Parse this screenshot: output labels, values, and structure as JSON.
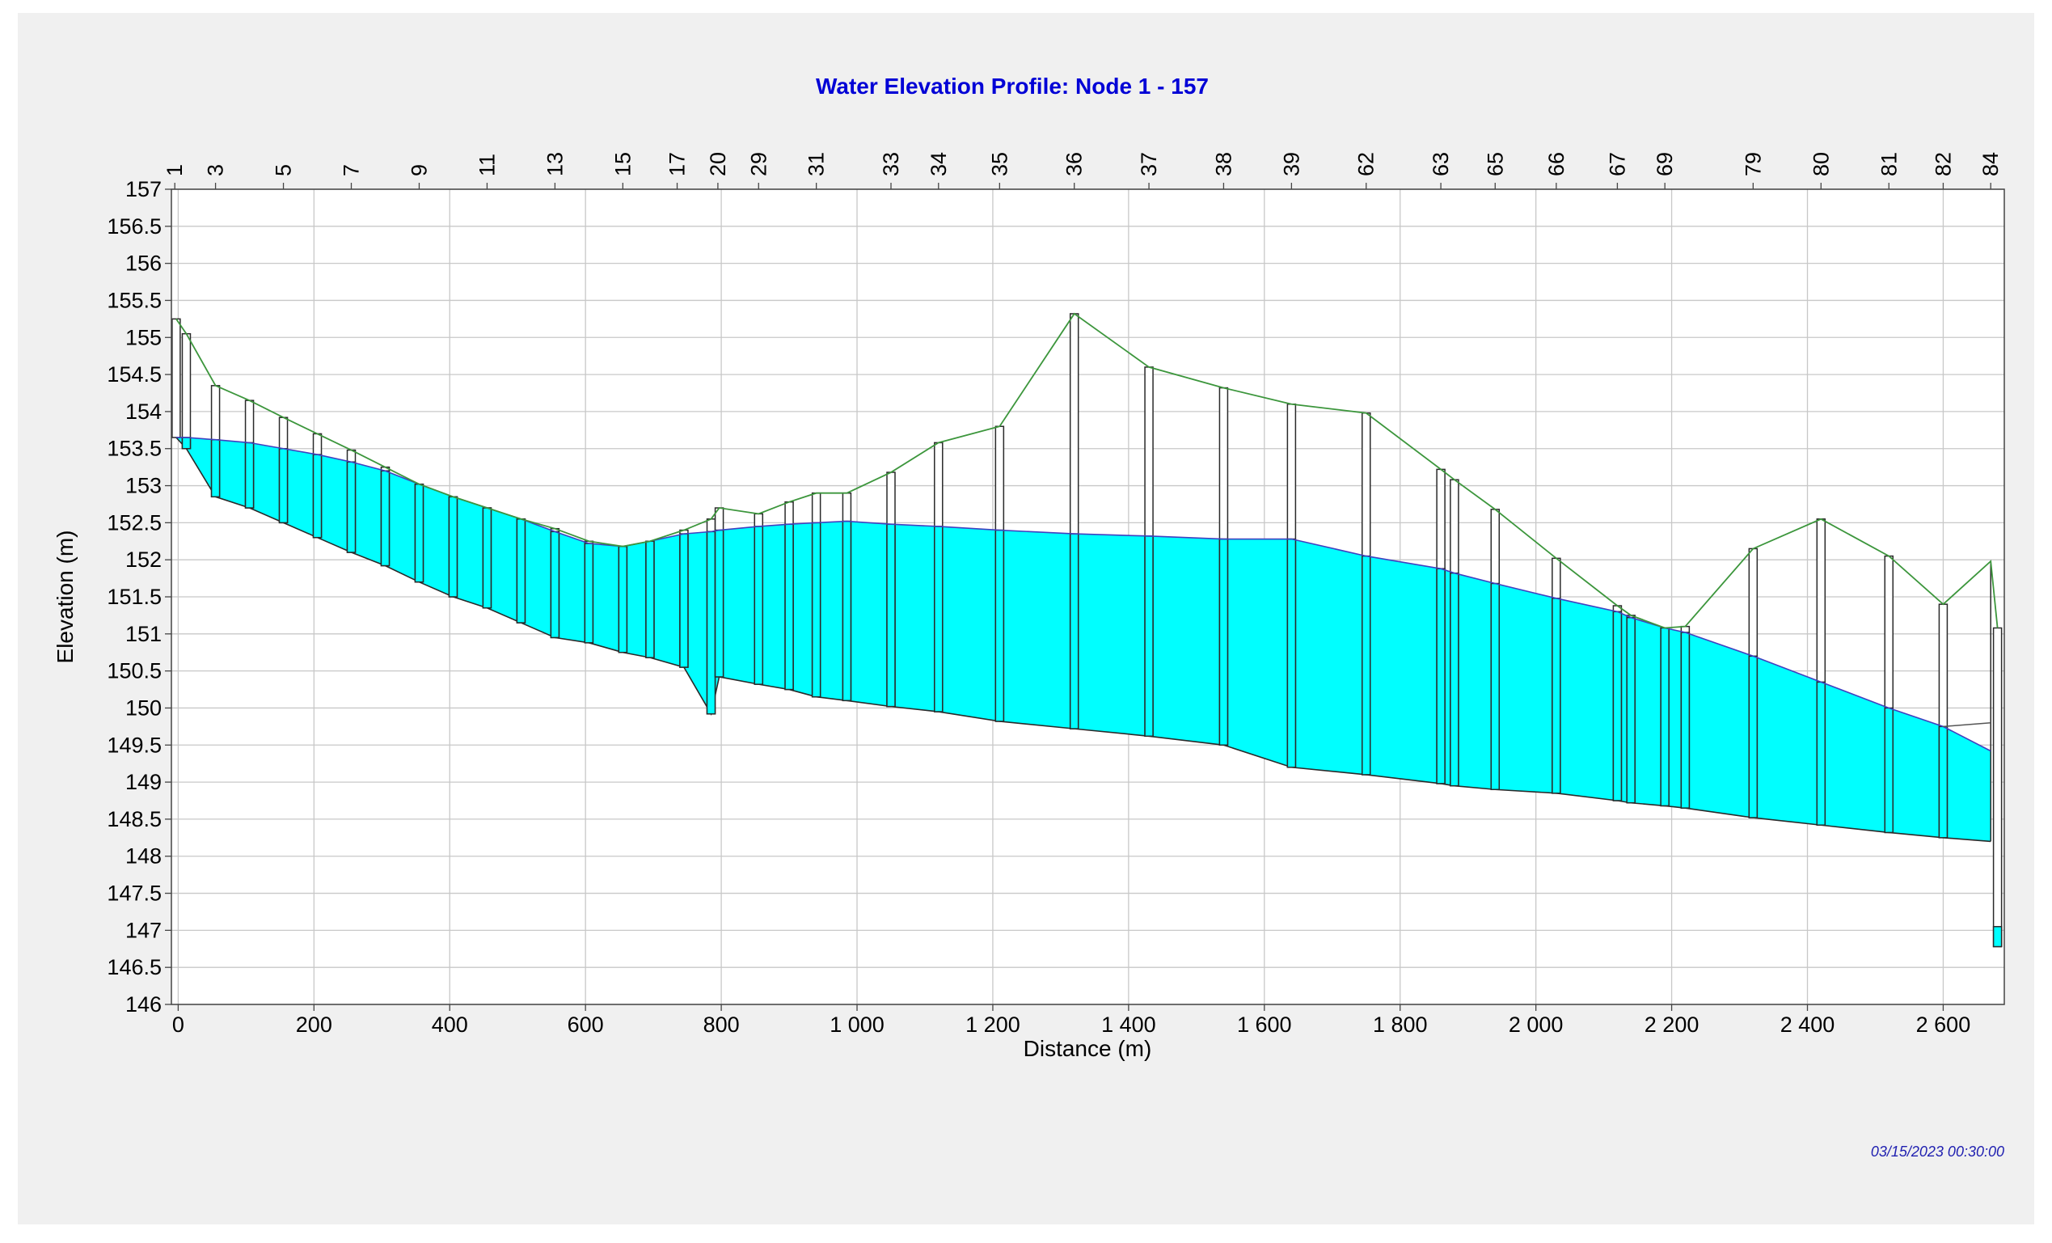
{
  "chart_data": {
    "type": "area",
    "title": "Water Elevation Profile: Node 1 - 157",
    "xlabel": "Distance (m)",
    "ylabel": "Elevation (m)",
    "timestamp": "03/15/2023 00:30:00",
    "xlim": [
      -10,
      2690
    ],
    "ylim": [
      146,
      157
    ],
    "grid": true,
    "x_ticks": [
      {
        "value": 0,
        "label": "0"
      },
      {
        "value": 200,
        "label": "200"
      },
      {
        "value": 400,
        "label": "400"
      },
      {
        "value": 600,
        "label": "600"
      },
      {
        "value": 800,
        "label": "800"
      },
      {
        "value": 1000,
        "label": "1 000"
      },
      {
        "value": 1200,
        "label": "1 200"
      },
      {
        "value": 1400,
        "label": "1 400"
      },
      {
        "value": 1600,
        "label": "1 600"
      },
      {
        "value": 1800,
        "label": "1 800"
      },
      {
        "value": 2000,
        "label": "2 000"
      },
      {
        "value": 2200,
        "label": "2 200"
      },
      {
        "value": 2400,
        "label": "2 400"
      },
      {
        "value": 2600,
        "label": "2 600"
      }
    ],
    "y_ticks": [
      {
        "value": 146,
        "label": "146"
      },
      {
        "value": 146.5,
        "label": "146.5"
      },
      {
        "value": 147,
        "label": "147"
      },
      {
        "value": 147.5,
        "label": "147.5"
      },
      {
        "value": 148,
        "label": "148"
      },
      {
        "value": 148.5,
        "label": "148.5"
      },
      {
        "value": 149,
        "label": "149"
      },
      {
        "value": 149.5,
        "label": "149.5"
      },
      {
        "value": 150,
        "label": "150"
      },
      {
        "value": 150.5,
        "label": "150.5"
      },
      {
        "value": 151,
        "label": "151"
      },
      {
        "value": 151.5,
        "label": "151.5"
      },
      {
        "value": 152,
        "label": "152"
      },
      {
        "value": 152.5,
        "label": "152.5"
      },
      {
        "value": 153,
        "label": "153"
      },
      {
        "value": 153.5,
        "label": "153.5"
      },
      {
        "value": 154,
        "label": "154"
      },
      {
        "value": 154.5,
        "label": "154.5"
      },
      {
        "value": 155,
        "label": "155"
      },
      {
        "value": 155.5,
        "label": "155.5"
      },
      {
        "value": 156,
        "label": "156"
      },
      {
        "value": 156.5,
        "label": "156.5"
      },
      {
        "value": 157,
        "label": "157"
      }
    ],
    "node_labels": [
      {
        "x": -5,
        "label": "1"
      },
      {
        "x": 55,
        "label": "3"
      },
      {
        "x": 155,
        "label": "5"
      },
      {
        "x": 255,
        "label": "7"
      },
      {
        "x": 355,
        "label": "9"
      },
      {
        "x": 455,
        "label": "11"
      },
      {
        "x": 555,
        "label": "13"
      },
      {
        "x": 655,
        "label": "15"
      },
      {
        "x": 735,
        "label": "17"
      },
      {
        "x": 795,
        "label": "20"
      },
      {
        "x": 855,
        "label": "29"
      },
      {
        "x": 940,
        "label": "31"
      },
      {
        "x": 1050,
        "label": "33"
      },
      {
        "x": 1120,
        "label": "34"
      },
      {
        "x": 1210,
        "label": "35"
      },
      {
        "x": 1320,
        "label": "36"
      },
      {
        "x": 1430,
        "label": "37"
      },
      {
        "x": 1540,
        "label": "38"
      },
      {
        "x": 1640,
        "label": "39"
      },
      {
        "x": 1750,
        "label": "62"
      },
      {
        "x": 1860,
        "label": "63"
      },
      {
        "x": 1940,
        "label": "65"
      },
      {
        "x": 2030,
        "label": "66"
      },
      {
        "x": 2120,
        "label": "67"
      },
      {
        "x": 2190,
        "label": "69"
      },
      {
        "x": 2320,
        "label": "79"
      },
      {
        "x": 2420,
        "label": "80"
      },
      {
        "x": 2520,
        "label": "81"
      },
      {
        "x": 2600,
        "label": "82"
      },
      {
        "x": 2670,
        "label": "84"
      }
    ],
    "nodes": [
      {
        "x": -3,
        "invert": 153.65,
        "ground": 155.25,
        "water": 153.65
      },
      {
        "x": 12,
        "invert": 153.5,
        "ground": 155.05,
        "water": 153.65
      },
      {
        "x": 55,
        "invert": 152.85,
        "ground": 154.35,
        "water": 153.62
      },
      {
        "x": 105,
        "invert": 152.7,
        "ground": 154.15,
        "water": 153.58
      },
      {
        "x": 155,
        "invert": 152.5,
        "ground": 153.92,
        "water": 153.5
      },
      {
        "x": 205,
        "invert": 152.3,
        "ground": 153.7,
        "water": 153.42
      },
      {
        "x": 255,
        "invert": 152.1,
        "ground": 153.48,
        "water": 153.32
      },
      {
        "x": 305,
        "invert": 151.92,
        "ground": 153.25,
        "water": 153.2
      },
      {
        "x": 355,
        "invert": 151.7,
        "ground": 153.02,
        "water": 153.02
      },
      {
        "x": 405,
        "invert": 151.5,
        "ground": 152.85,
        "water": 152.85
      },
      {
        "x": 455,
        "invert": 151.35,
        "ground": 152.7,
        "water": 152.7
      },
      {
        "x": 505,
        "invert": 151.15,
        "ground": 152.55,
        "water": 152.55
      },
      {
        "x": 555,
        "invert": 150.95,
        "ground": 152.42,
        "water": 152.38
      },
      {
        "x": 605,
        "invert": 150.88,
        "ground": 152.25,
        "water": 152.22
      },
      {
        "x": 655,
        "invert": 150.75,
        "ground": 152.18,
        "water": 152.18
      },
      {
        "x": 695,
        "invert": 150.68,
        "ground": 152.25,
        "water": 152.25
      },
      {
        "x": 745,
        "invert": 150.55,
        "ground": 152.4,
        "water": 152.35
      },
      {
        "x": 785,
        "invert": 149.92,
        "ground": 152.55,
        "water": 152.38
      },
      {
        "x": 797,
        "invert": 150.42,
        "ground": 152.7,
        "water": 152.4
      },
      {
        "x": 855,
        "invert": 150.32,
        "ground": 152.62,
        "water": 152.45
      },
      {
        "x": 900,
        "invert": 150.25,
        "ground": 152.78,
        "water": 152.48
      },
      {
        "x": 940,
        "invert": 150.15,
        "ground": 152.9,
        "water": 152.5
      },
      {
        "x": 985,
        "invert": 150.1,
        "ground": 152.9,
        "water": 152.52
      },
      {
        "x": 1050,
        "invert": 150.02,
        "ground": 153.18,
        "water": 152.48
      },
      {
        "x": 1120,
        "invert": 149.95,
        "ground": 153.58,
        "water": 152.45
      },
      {
        "x": 1210,
        "invert": 149.82,
        "ground": 153.8,
        "water": 152.4
      },
      {
        "x": 1320,
        "invert": 149.72,
        "ground": 155.32,
        "water": 152.35
      },
      {
        "x": 1430,
        "invert": 149.62,
        "ground": 154.6,
        "water": 152.32
      },
      {
        "x": 1540,
        "invert": 149.5,
        "ground": 154.32,
        "water": 152.28
      },
      {
        "x": 1640,
        "invert": 149.2,
        "ground": 154.1,
        "water": 152.28
      },
      {
        "x": 1750,
        "invert": 149.1,
        "ground": 153.98,
        "water": 152.05
      },
      {
        "x": 1860,
        "invert": 148.98,
        "ground": 153.22,
        "water": 151.88
      },
      {
        "x": 1880,
        "invert": 148.95,
        "ground": 153.08,
        "water": 151.82
      },
      {
        "x": 1940,
        "invert": 148.9,
        "ground": 152.68,
        "water": 151.68
      },
      {
        "x": 2030,
        "invert": 148.85,
        "ground": 152.02,
        "water": 151.48
      },
      {
        "x": 2120,
        "invert": 148.75,
        "ground": 151.38,
        "water": 151.3
      },
      {
        "x": 2140,
        "invert": 148.72,
        "ground": 151.25,
        "water": 151.22
      },
      {
        "x": 2190,
        "invert": 148.68,
        "ground": 151.08,
        "water": 151.08
      },
      {
        "x": 2220,
        "invert": 148.65,
        "ground": 151.1,
        "water": 151.02
      },
      {
        "x": 2320,
        "invert": 148.52,
        "ground": 152.15,
        "water": 150.7
      },
      {
        "x": 2420,
        "invert": 148.42,
        "ground": 152.55,
        "water": 150.35
      },
      {
        "x": 2520,
        "invert": 148.32,
        "ground": 152.05,
        "water": 150.0
      },
      {
        "x": 2600,
        "invert": 148.25,
        "ground": 151.4,
        "water": 149.75
      },
      {
        "x": 2680,
        "invert": 146.78,
        "ground": 151.08,
        "water": 147.05
      }
    ],
    "upstream_conduit_at_outfall": {
      "x": 2670,
      "invert": 148.2,
      "crown": 149.8,
      "ground": 151.98,
      "water": 149.42
    },
    "colors": {
      "water_fill": "#00ffff",
      "water_line": "#4040c0",
      "ground_line": "#3c963c",
      "node_outline": "#2a2a2a",
      "grid": "#c8c8c8",
      "title": "#0000d6",
      "timestamp": "#1f1fb0"
    }
  }
}
